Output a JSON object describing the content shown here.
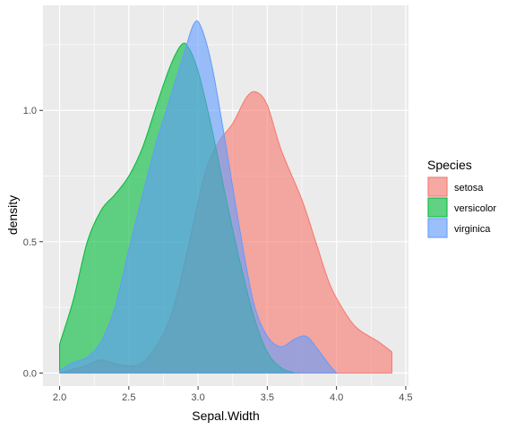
{
  "chart_data": {
    "type": "area",
    "subtype": "density",
    "xlabel": "Sepal.Width",
    "ylabel": "density",
    "xlim": [
      1.88,
      4.52
    ],
    "ylim": [
      -0.05,
      1.4
    ],
    "x_ticks": [
      2.0,
      2.5,
      3.0,
      3.5,
      4.0,
      4.5
    ],
    "x_tick_labels": [
      "2.0",
      "2.5",
      "3.0",
      "3.5",
      "4.0",
      "4.5"
    ],
    "y_ticks": [
      0.0,
      0.5,
      1.0
    ],
    "y_tick_labels": [
      "0.0",
      "0.5",
      "1.0"
    ],
    "grid": true,
    "legend": {
      "title": "Species",
      "placement": "right"
    },
    "series": [
      {
        "name": "setosa",
        "color": "#F8766D",
        "points": [
          [
            2.0,
            0.0
          ],
          [
            2.2,
            0.03
          ],
          [
            2.3,
            0.05
          ],
          [
            2.45,
            0.03
          ],
          [
            2.6,
            0.04
          ],
          [
            2.75,
            0.15
          ],
          [
            2.85,
            0.3
          ],
          [
            2.95,
            0.53
          ],
          [
            3.05,
            0.76
          ],
          [
            3.15,
            0.88
          ],
          [
            3.25,
            0.95
          ],
          [
            3.35,
            1.05
          ],
          [
            3.42,
            1.07
          ],
          [
            3.5,
            1.02
          ],
          [
            3.6,
            0.85
          ],
          [
            3.75,
            0.66
          ],
          [
            3.85,
            0.5
          ],
          [
            3.95,
            0.34
          ],
          [
            4.05,
            0.24
          ],
          [
            4.15,
            0.17
          ],
          [
            4.3,
            0.12
          ],
          [
            4.4,
            0.08
          ]
        ]
      },
      {
        "name": "versicolor",
        "color": "#00BA38",
        "points": [
          [
            2.0,
            0.11
          ],
          [
            2.1,
            0.28
          ],
          [
            2.2,
            0.5
          ],
          [
            2.3,
            0.62
          ],
          [
            2.4,
            0.68
          ],
          [
            2.5,
            0.75
          ],
          [
            2.6,
            0.86
          ],
          [
            2.7,
            1.02
          ],
          [
            2.8,
            1.17
          ],
          [
            2.88,
            1.25
          ],
          [
            2.93,
            1.24
          ],
          [
            3.0,
            1.15
          ],
          [
            3.1,
            0.93
          ],
          [
            3.2,
            0.67
          ],
          [
            3.3,
            0.43
          ],
          [
            3.4,
            0.22
          ],
          [
            3.5,
            0.08
          ],
          [
            3.6,
            0.02
          ],
          [
            3.7,
            0.0
          ]
        ]
      },
      {
        "name": "virginica",
        "color": "#619CFF",
        "points": [
          [
            2.0,
            0.01
          ],
          [
            2.1,
            0.04
          ],
          [
            2.2,
            0.06
          ],
          [
            2.3,
            0.12
          ],
          [
            2.4,
            0.25
          ],
          [
            2.5,
            0.47
          ],
          [
            2.6,
            0.68
          ],
          [
            2.7,
            0.88
          ],
          [
            2.8,
            1.05
          ],
          [
            2.9,
            1.22
          ],
          [
            2.97,
            1.33
          ],
          [
            3.02,
            1.32
          ],
          [
            3.1,
            1.17
          ],
          [
            3.2,
            0.87
          ],
          [
            3.3,
            0.55
          ],
          [
            3.4,
            0.27
          ],
          [
            3.5,
            0.14
          ],
          [
            3.6,
            0.1
          ],
          [
            3.7,
            0.13
          ],
          [
            3.78,
            0.14
          ],
          [
            3.85,
            0.1
          ],
          [
            3.95,
            0.03
          ],
          [
            4.0,
            0.0
          ]
        ]
      }
    ]
  }
}
